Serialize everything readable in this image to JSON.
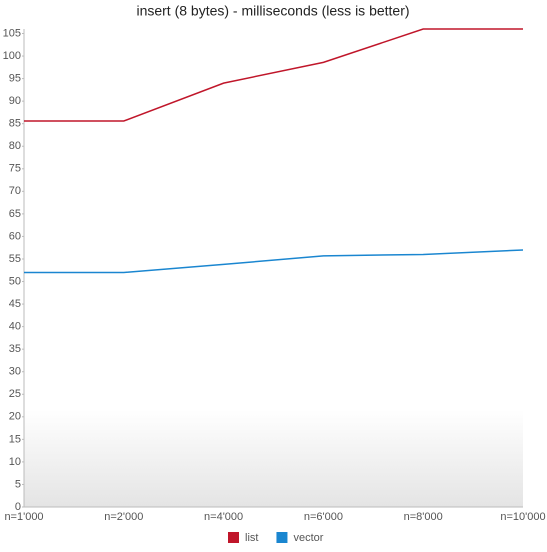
{
  "chart_data": {
    "type": "line",
    "title": "insert (8 bytes) - milliseconds (less is better)",
    "categories": [
      "n=1'000",
      "n=2'000",
      "n=4'000",
      "n=6'000",
      "n=8'000",
      "n=10'000"
    ],
    "series": [
      {
        "name": "list",
        "color": "#c0162a",
        "values": [
          85.6,
          85.6,
          94,
          98.6,
          106,
          106
        ]
      },
      {
        "name": "vector",
        "color": "#1a86d0",
        "values": [
          52,
          52,
          53.8,
          55.7,
          56,
          57
        ]
      }
    ],
    "ylim": [
      0,
      106
    ],
    "yticks": [
      0,
      5,
      10,
      15,
      20,
      25,
      30,
      35,
      40,
      45,
      50,
      55,
      60,
      65,
      70,
      75,
      80,
      85,
      90,
      95,
      100,
      105
    ]
  }
}
